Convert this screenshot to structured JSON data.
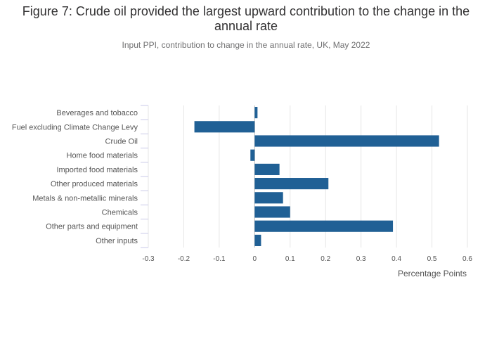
{
  "chart_data": {
    "type": "bar",
    "orientation": "horizontal",
    "title": "Figure 7: Crude oil provided the largest upward contribution to the change in the annual rate",
    "subtitle": "Input PPI, contribution to change in the annual rate, UK, May 2022",
    "xlabel": "Percentage Points",
    "ylabel": "",
    "xlim": [
      -0.3,
      0.6
    ],
    "xticks": [
      -0.3,
      -0.2,
      -0.1,
      0,
      0.1,
      0.2,
      0.3,
      0.4,
      0.5,
      0.6
    ],
    "xtick_labels": [
      "-0.3",
      "-0.2",
      "-0.1",
      "0",
      "0.1",
      "0.2",
      "0.3",
      "0.4",
      "0.5",
      "0.6"
    ],
    "grid": true,
    "categories": [
      "Beverages and tobacco",
      "Fuel excluding Climate Change Levy",
      "Crude Oil",
      "Home food materials",
      "Imported food materials",
      "Other produced materials",
      "Metals & non-metallic minerals",
      "Chemicals",
      "Other parts and equipment",
      "Other inputs"
    ],
    "values": [
      0.008,
      -0.17,
      0.52,
      -0.012,
      0.07,
      0.208,
      0.08,
      0.1,
      0.39,
      0.018
    ],
    "bar_color": "#206095",
    "gridline_color": "#e6e6e6",
    "zero_line_color": "#bbbbbb"
  }
}
